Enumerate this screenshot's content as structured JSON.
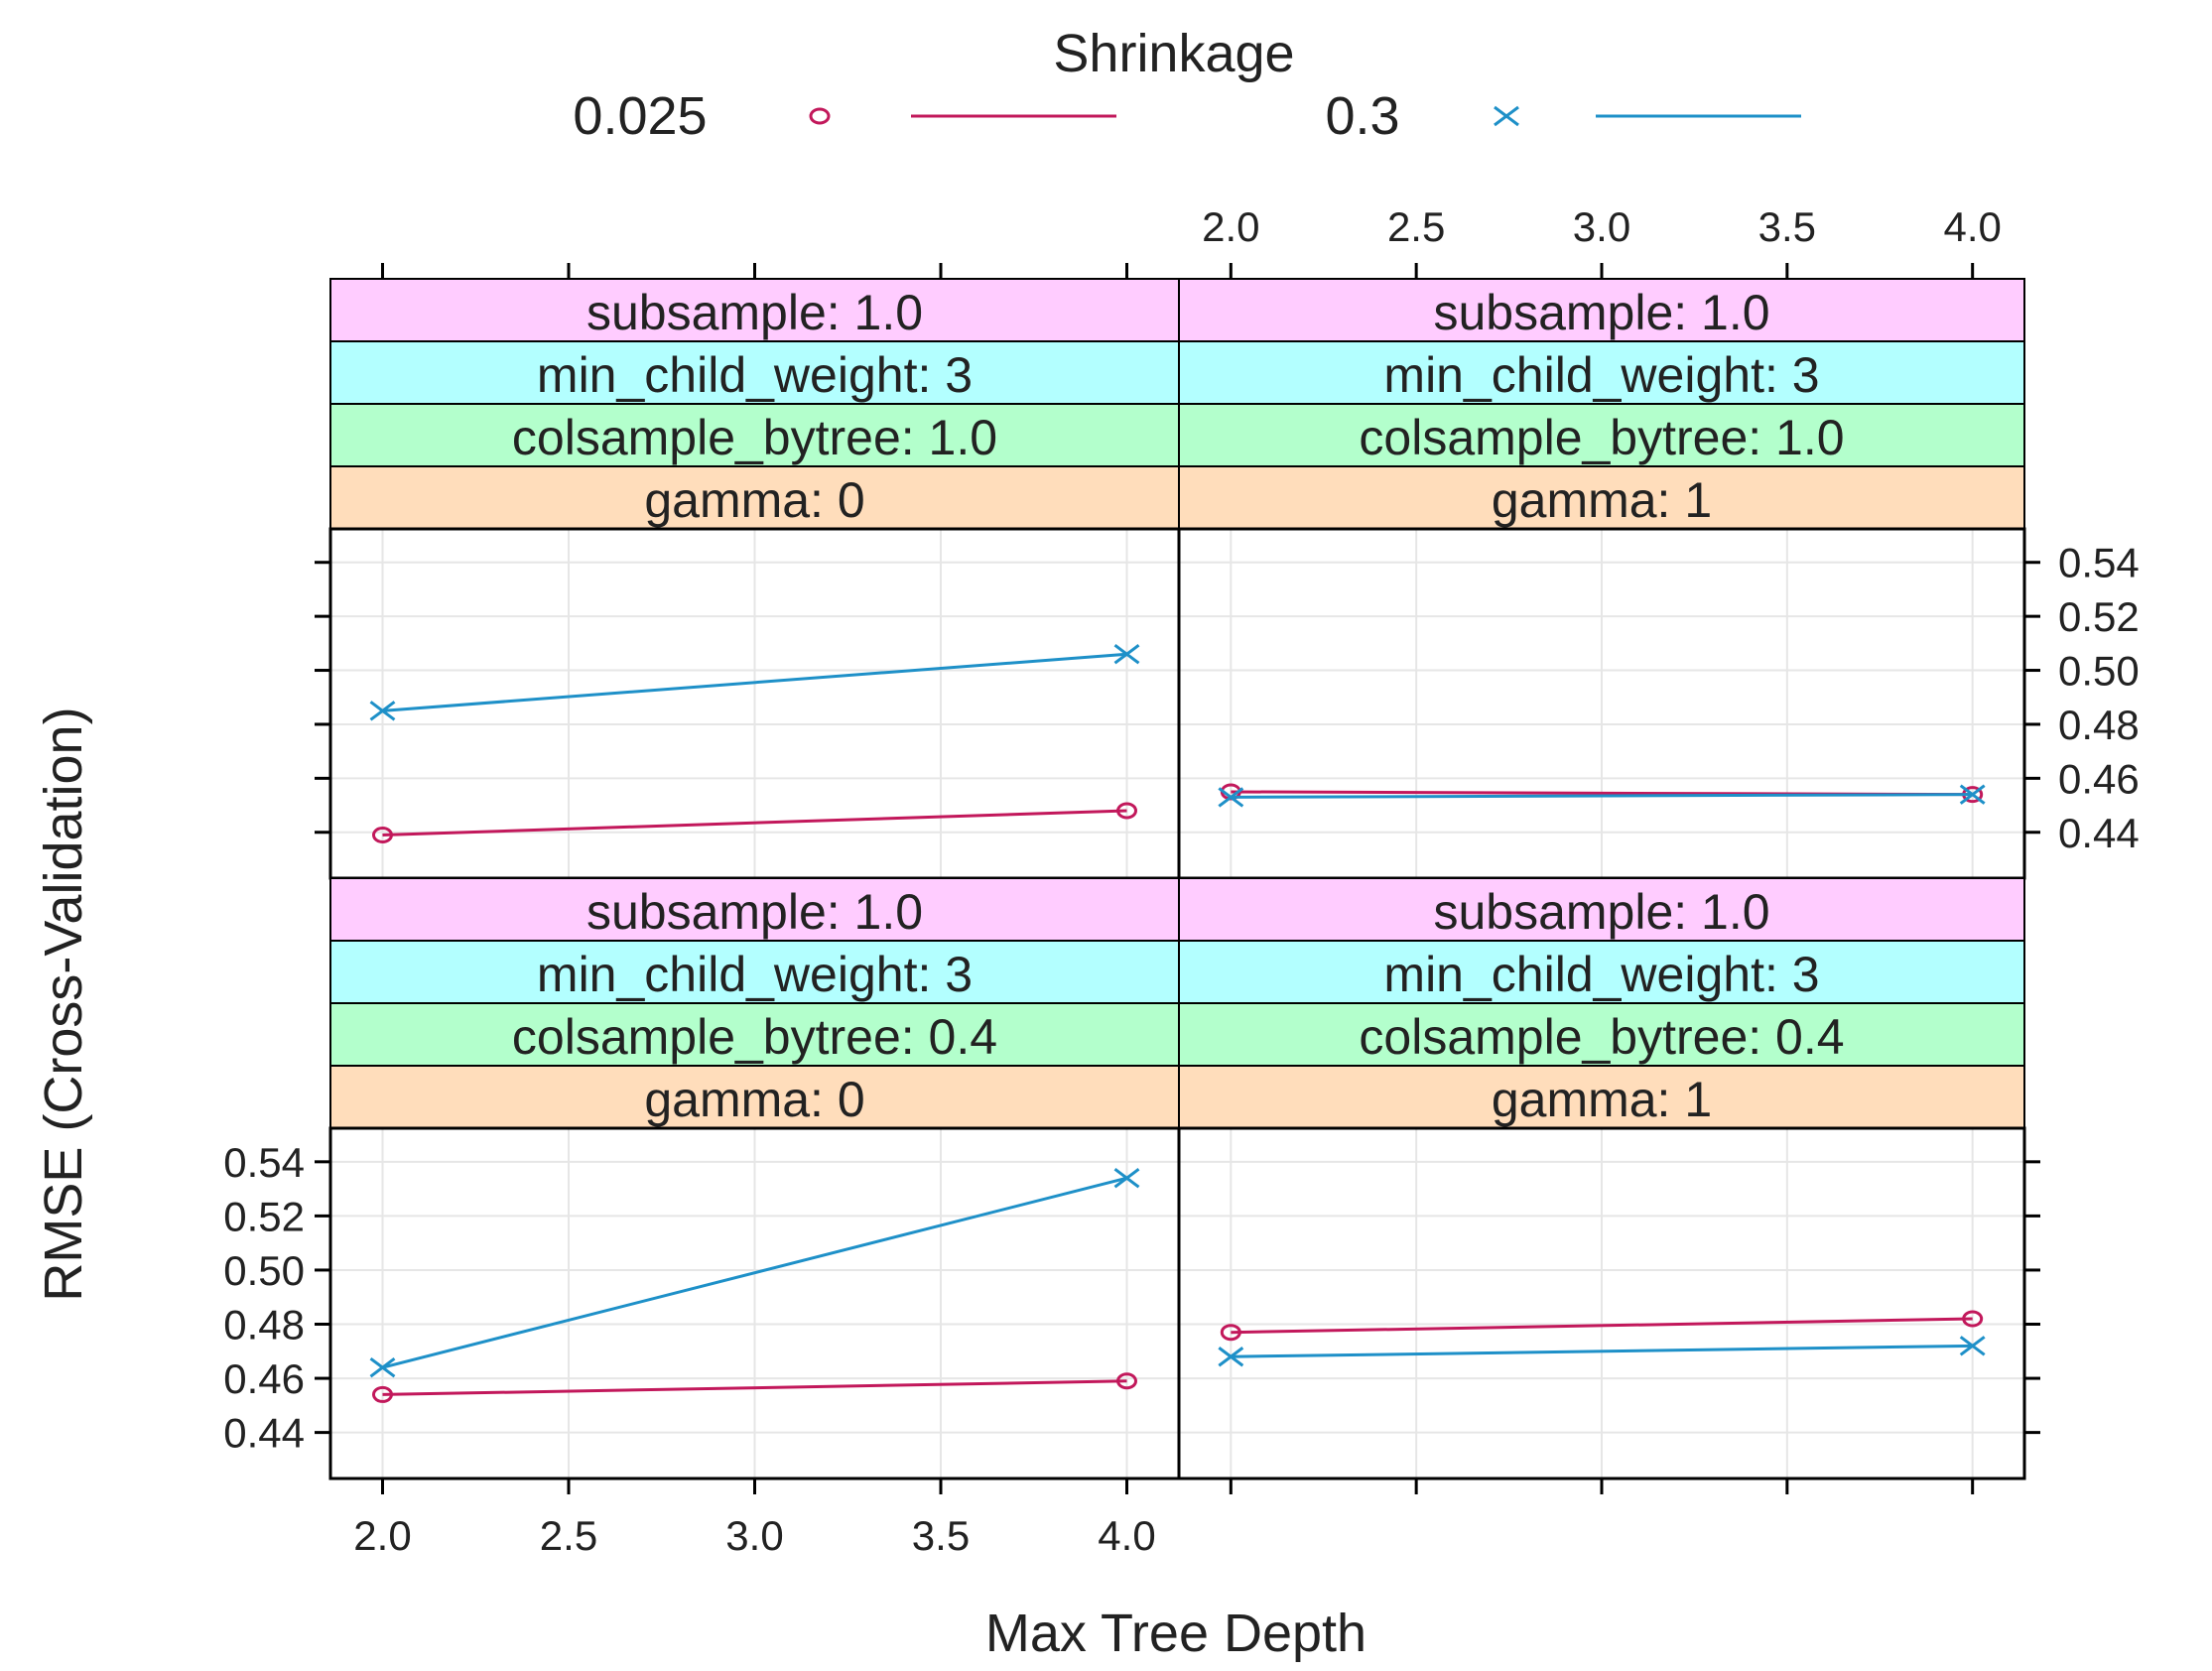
{
  "chart_data": {
    "type": "line",
    "title": "",
    "legend": {
      "title": "Shrinkage",
      "position": "top",
      "entries": [
        {
          "label": "0.025",
          "marker": "circle",
          "color": "#C2185B"
        },
        {
          "label": "0.3",
          "marker": "x",
          "color": "#1E90C8"
        }
      ]
    },
    "xlabel": "Max Tree Depth",
    "ylabel": "RMSE (Cross-Validation)",
    "xlim": [
      1.86,
      4.14
    ],
    "ylim": [
      0.423,
      0.5524
    ],
    "x_ticks": [
      2.0,
      2.5,
      3.0,
      3.5,
      4.0
    ],
    "x_tick_labels": [
      "2.0",
      "2.5",
      "3.0",
      "3.5",
      "4.0"
    ],
    "y_ticks": [
      0.44,
      0.46,
      0.48,
      0.5,
      0.52,
      0.54
    ],
    "y_tick_labels": [
      "0.44",
      "0.46",
      "0.48",
      "0.50",
      "0.52",
      "0.54"
    ],
    "grid": true,
    "strip_colors": {
      "subsample": "#FFCCFF",
      "min_child_weight": "#B3FFFF",
      "colsample_bytree": "#B3FFCC",
      "gamma": "#FFDDBB"
    },
    "panels": [
      {
        "id": "top-left",
        "strips": [
          "subsample: 1.0",
          "min_child_weight: 3",
          "colsample_bytree: 1.0",
          "gamma: 0"
        ],
        "series": [
          {
            "name": "0.025",
            "x": [
              2,
              4
            ],
            "y": [
              0.439,
              0.448
            ]
          },
          {
            "name": "0.3",
            "x": [
              2,
              4
            ],
            "y": [
              0.485,
              0.506
            ]
          }
        ]
      },
      {
        "id": "top-right",
        "strips": [
          "subsample: 1.0",
          "min_child_weight: 3",
          "colsample_bytree: 1.0",
          "gamma: 1"
        ],
        "series": [
          {
            "name": "0.025",
            "x": [
              2,
              4
            ],
            "y": [
              0.455,
              0.454
            ]
          },
          {
            "name": "0.3",
            "x": [
              2,
              4
            ],
            "y": [
              0.453,
              0.454
            ]
          }
        ]
      },
      {
        "id": "bottom-left",
        "strips": [
          "subsample: 1.0",
          "min_child_weight: 3",
          "colsample_bytree: 0.4",
          "gamma: 0"
        ],
        "series": [
          {
            "name": "0.025",
            "x": [
              2,
              4
            ],
            "y": [
              0.454,
              0.459
            ]
          },
          {
            "name": "0.3",
            "x": [
              2,
              4
            ],
            "y": [
              0.464,
              0.534
            ]
          }
        ]
      },
      {
        "id": "bottom-right",
        "strips": [
          "subsample: 1.0",
          "min_child_weight: 3",
          "colsample_bytree: 0.4",
          "gamma: 1"
        ],
        "series": [
          {
            "name": "0.025",
            "x": [
              2,
              4
            ],
            "y": [
              0.477,
              0.482
            ]
          },
          {
            "name": "0.3",
            "x": [
              2,
              4
            ],
            "y": [
              0.468,
              0.472
            ]
          }
        ]
      }
    ]
  }
}
